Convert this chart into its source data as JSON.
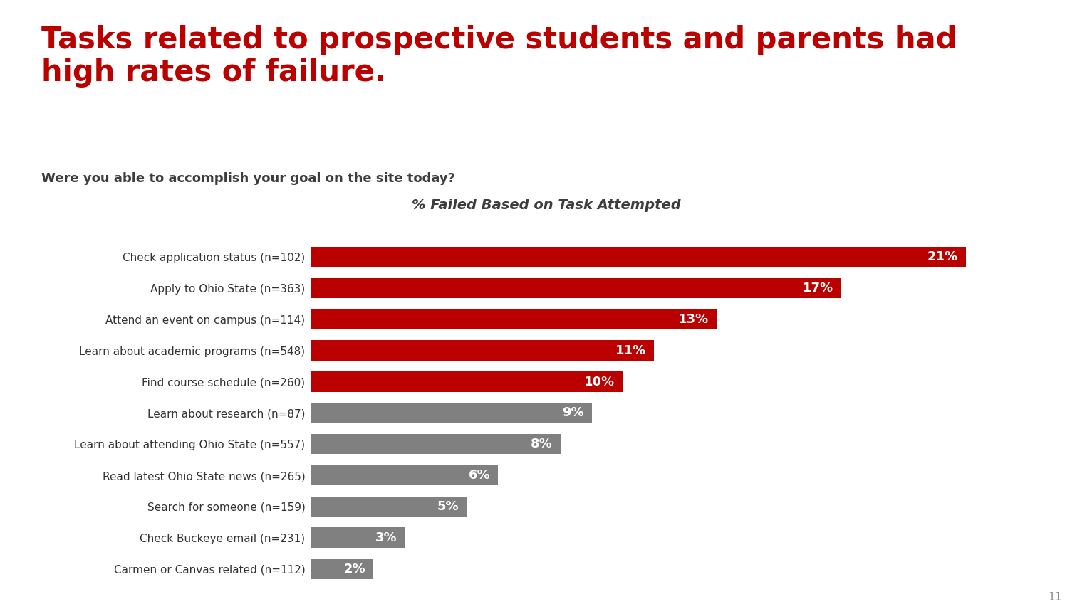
{
  "title_line1": "Tasks related to prospective students and parents had",
  "title_line2": "high rates of failure.",
  "subtitle": "Were you able to accomplish your goal on the site today?",
  "chart_title": "% Failed Based on Task Attempted",
  "categories": [
    "Check application status (n=102)",
    "Apply to Ohio State (n=363)",
    "Attend an event on campus (n=114)",
    "Learn about academic programs (n=548)",
    "Find course schedule (n=260)",
    "Learn about research (n=87)",
    "Learn about attending Ohio State (n=557)",
    "Read latest Ohio State news (n=265)",
    "Search for someone (n=159)",
    "Check Buckeye email (n=231)",
    "Carmen or Canvas related (n=112)"
  ],
  "values": [
    21,
    17,
    13,
    11,
    10,
    9,
    8,
    6,
    5,
    3,
    2
  ],
  "bar_colors": [
    "#BB0000",
    "#BB0000",
    "#BB0000",
    "#BB0000",
    "#BB0000",
    "#808080",
    "#808080",
    "#808080",
    "#808080",
    "#808080",
    "#808080"
  ],
  "title_color": "#BB0000",
  "subtitle_color": "#3D3D3D",
  "chart_title_color": "#3D3D3D",
  "label_color": "#FFFFFF",
  "background_color": "#FFFFFF",
  "page_number": "11",
  "title_fontsize": 30,
  "subtitle_fontsize": 13,
  "chart_title_fontsize": 14,
  "bar_label_fontsize": 13,
  "ytick_fontsize": 11
}
